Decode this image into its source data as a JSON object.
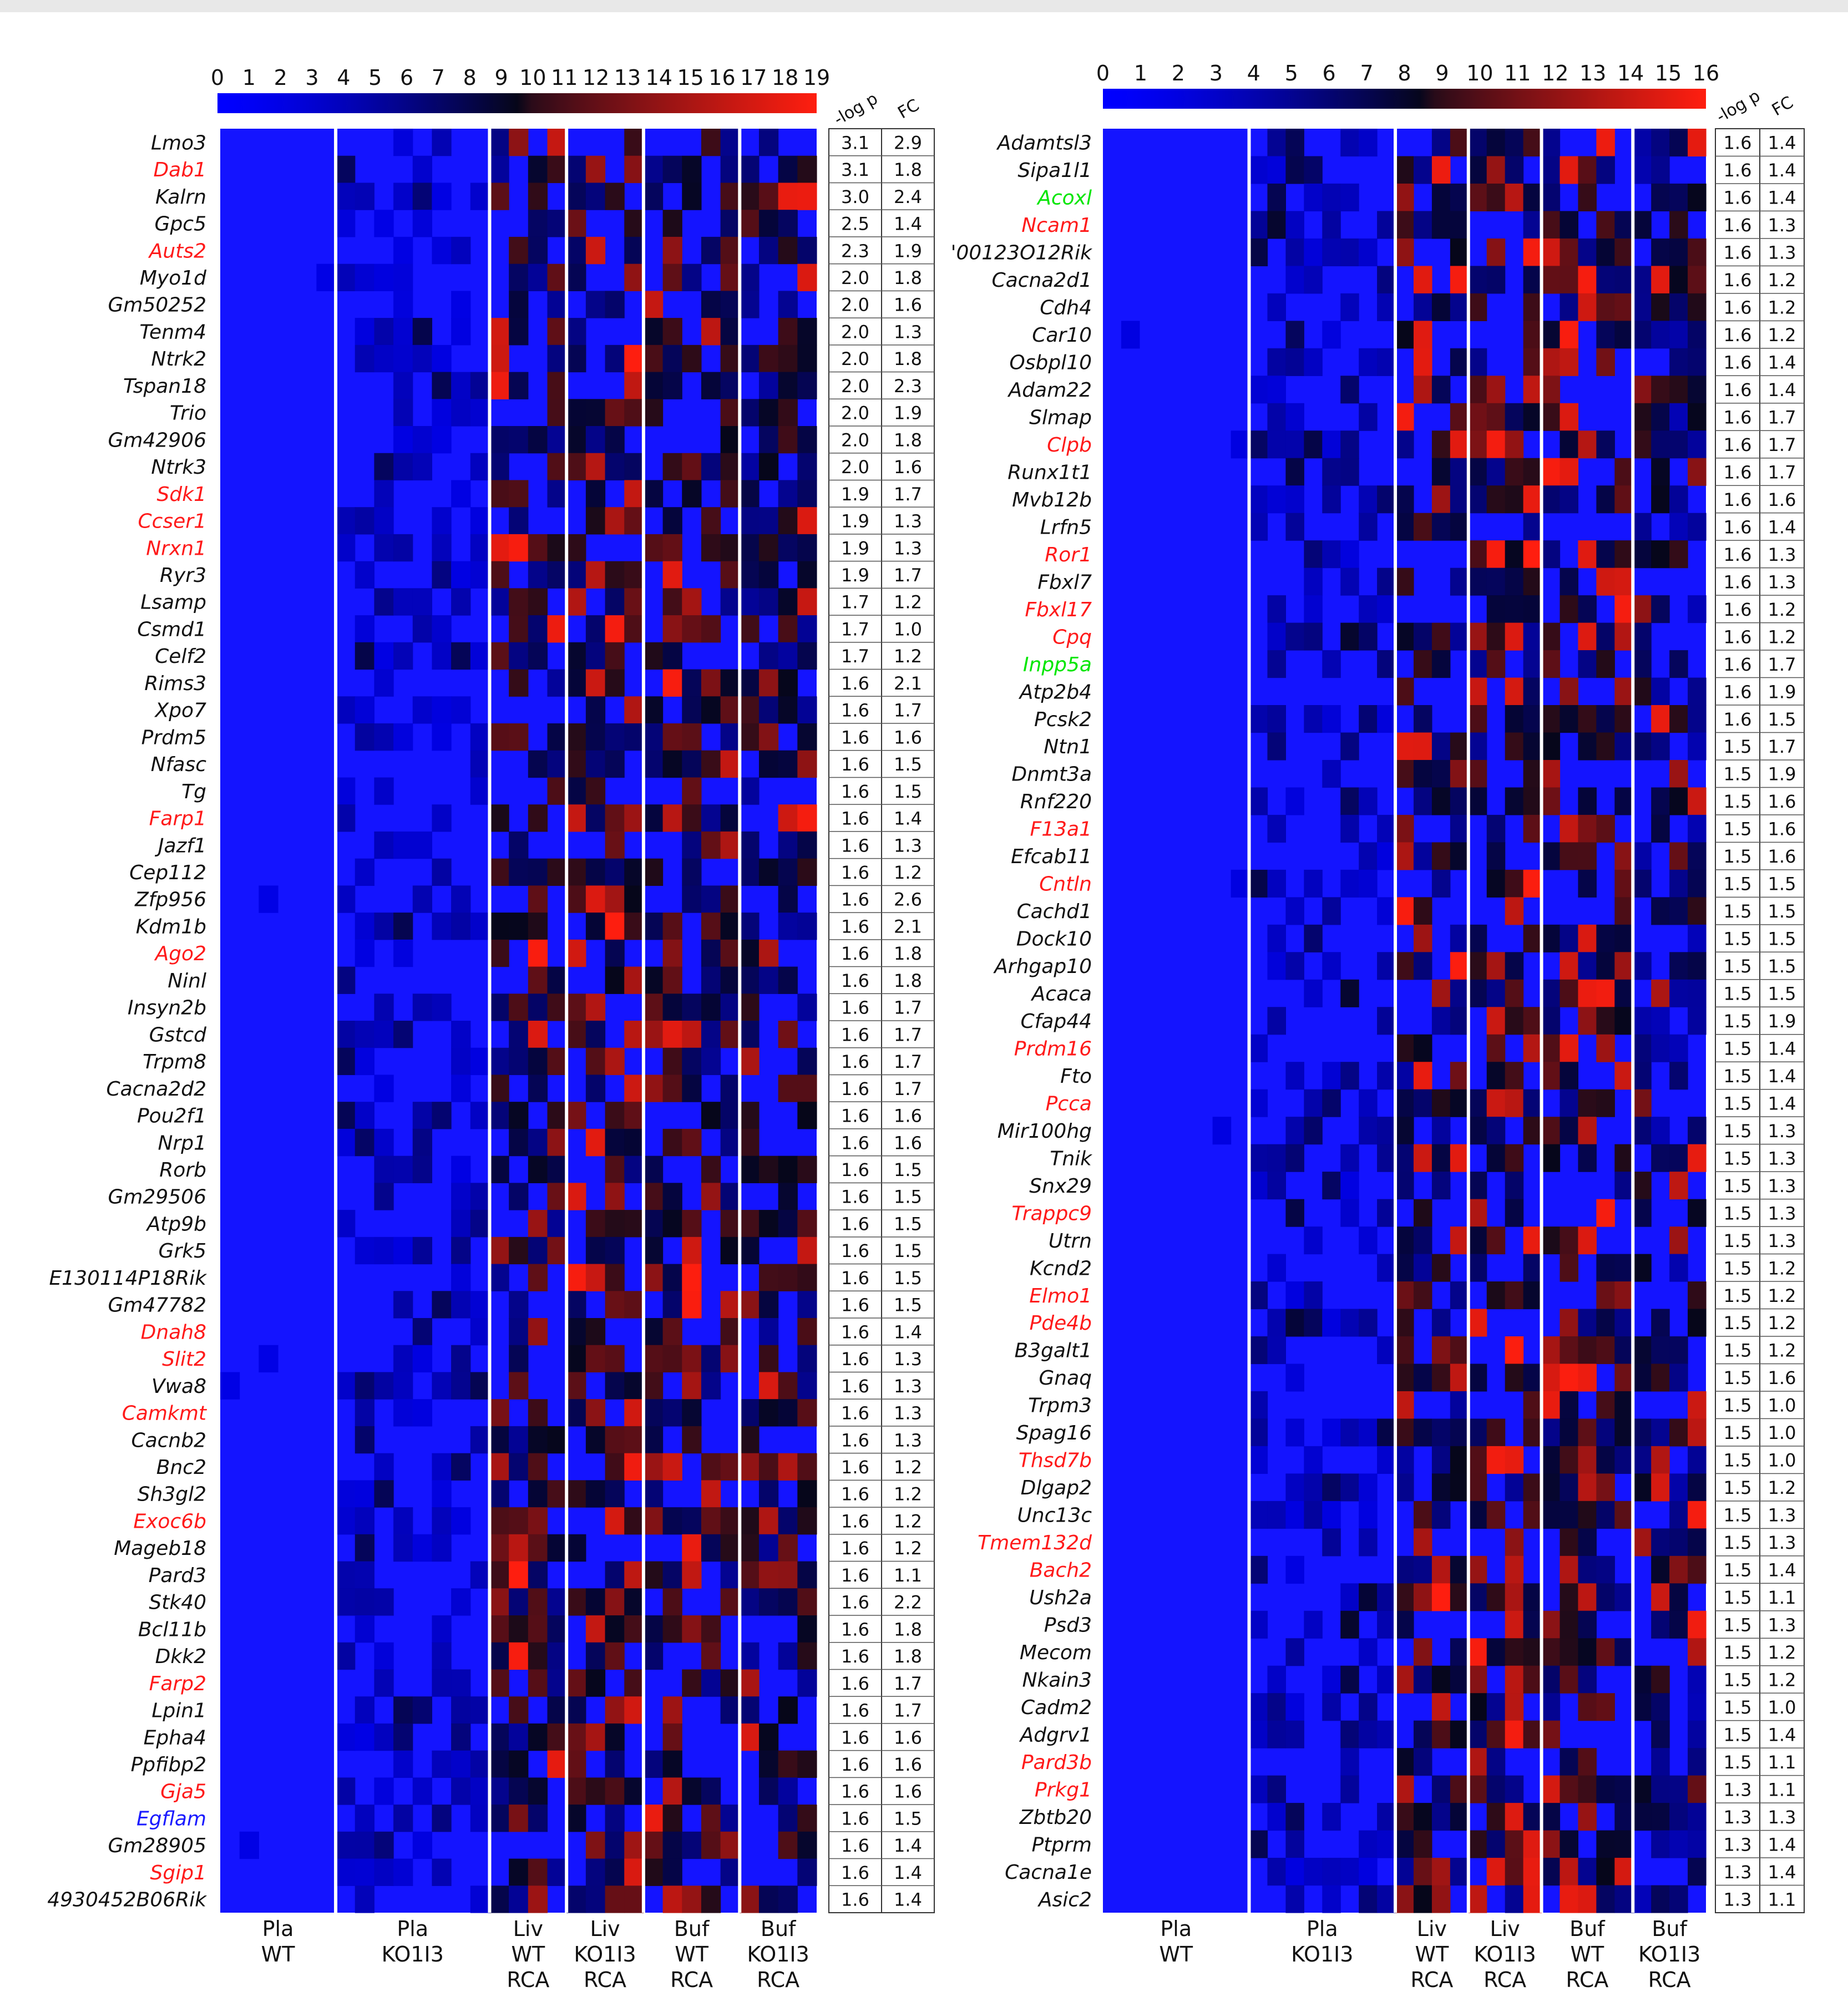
{
  "chart_data": [
    {
      "type": "heatmap",
      "panel": "left",
      "colorbar": {
        "ticks": [
          "0",
          "1",
          "2",
          "3",
          "4",
          "5",
          "6",
          "7",
          "8",
          "9",
          "10",
          "11",
          "12",
          "13",
          "14",
          "15",
          "16",
          "17",
          "18",
          "19"
        ],
        "range": [
          0,
          19
        ]
      },
      "table_headers": [
        "-log p",
        "FC"
      ],
      "group_columns": [
        6,
        8,
        4,
        4,
        5,
        4
      ],
      "group_labels": [
        [
          "Pla",
          "WT"
        ],
        [
          "Pla",
          "KO1I3"
        ],
        [
          "Liv",
          "WT",
          "RCA"
        ],
        [
          "Liv",
          "KO1I3",
          "RCA"
        ],
        [
          "Buf",
          "WT",
          "RCA"
        ],
        [
          "Buf",
          "KO1I3",
          "RCA"
        ]
      ],
      "genes": [
        {
          "name": "Lmo3",
          "color": "black",
          "logp": "3.1",
          "fc": "2.9"
        },
        {
          "name": "Dab1",
          "color": "red",
          "logp": "3.1",
          "fc": "1.8"
        },
        {
          "name": "Kalrn",
          "color": "black",
          "logp": "3.0",
          "fc": "2.4"
        },
        {
          "name": "Gpc5",
          "color": "black",
          "logp": "2.5",
          "fc": "1.4"
        },
        {
          "name": "Auts2",
          "color": "red",
          "logp": "2.3",
          "fc": "1.9"
        },
        {
          "name": "Myo1d",
          "color": "black",
          "logp": "2.0",
          "fc": "1.8"
        },
        {
          "name": "Gm50252",
          "color": "black",
          "logp": "2.0",
          "fc": "1.6"
        },
        {
          "name": "Tenm4",
          "color": "black",
          "logp": "2.0",
          "fc": "1.3"
        },
        {
          "name": "Ntrk2",
          "color": "black",
          "logp": "2.0",
          "fc": "1.8"
        },
        {
          "name": "Tspan18",
          "color": "black",
          "logp": "2.0",
          "fc": "2.3"
        },
        {
          "name": "Trio",
          "color": "black",
          "logp": "2.0",
          "fc": "1.9"
        },
        {
          "name": "Gm42906",
          "color": "black",
          "logp": "2.0",
          "fc": "1.8"
        },
        {
          "name": "Ntrk3",
          "color": "black",
          "logp": "2.0",
          "fc": "1.6"
        },
        {
          "name": "Sdk1",
          "color": "red",
          "logp": "1.9",
          "fc": "1.7"
        },
        {
          "name": "Ccser1",
          "color": "red",
          "logp": "1.9",
          "fc": "1.3"
        },
        {
          "name": "Nrxn1",
          "color": "red",
          "logp": "1.9",
          "fc": "1.3"
        },
        {
          "name": "Ryr3",
          "color": "black",
          "logp": "1.9",
          "fc": "1.7"
        },
        {
          "name": "Lsamp",
          "color": "black",
          "logp": "1.7",
          "fc": "1.2"
        },
        {
          "name": "Csmd1",
          "color": "black",
          "logp": "1.7",
          "fc": "1.0"
        },
        {
          "name": "Celf2",
          "color": "black",
          "logp": "1.7",
          "fc": "1.2"
        },
        {
          "name": "Rims3",
          "color": "black",
          "logp": "1.6",
          "fc": "2.1"
        },
        {
          "name": "Xpo7",
          "color": "black",
          "logp": "1.6",
          "fc": "1.7"
        },
        {
          "name": "Prdm5",
          "color": "black",
          "logp": "1.6",
          "fc": "1.6"
        },
        {
          "name": "Nfasc",
          "color": "black",
          "logp": "1.6",
          "fc": "1.5"
        },
        {
          "name": "Tg",
          "color": "black",
          "logp": "1.6",
          "fc": "1.5"
        },
        {
          "name": "Farp1",
          "color": "red",
          "logp": "1.6",
          "fc": "1.4"
        },
        {
          "name": "Jazf1",
          "color": "black",
          "logp": "1.6",
          "fc": "1.3"
        },
        {
          "name": "Cep112",
          "color": "black",
          "logp": "1.6",
          "fc": "1.2"
        },
        {
          "name": "Zfp956",
          "color": "black",
          "logp": "1.6",
          "fc": "2.6"
        },
        {
          "name": "Kdm1b",
          "color": "black",
          "logp": "1.6",
          "fc": "2.1"
        },
        {
          "name": "Ago2",
          "color": "red",
          "logp": "1.6",
          "fc": "1.8"
        },
        {
          "name": "Ninl",
          "color": "black",
          "logp": "1.6",
          "fc": "1.8"
        },
        {
          "name": "Insyn2b",
          "color": "black",
          "logp": "1.6",
          "fc": "1.7"
        },
        {
          "name": "Gstcd",
          "color": "black",
          "logp": "1.6",
          "fc": "1.7"
        },
        {
          "name": "Trpm8",
          "color": "black",
          "logp": "1.6",
          "fc": "1.7"
        },
        {
          "name": "Cacna2d2",
          "color": "black",
          "logp": "1.6",
          "fc": "1.7"
        },
        {
          "name": "Pou2f1",
          "color": "black",
          "logp": "1.6",
          "fc": "1.6"
        },
        {
          "name": "Nrp1",
          "color": "black",
          "logp": "1.6",
          "fc": "1.6"
        },
        {
          "name": "Rorb",
          "color": "black",
          "logp": "1.6",
          "fc": "1.5"
        },
        {
          "name": "Gm29506",
          "color": "black",
          "logp": "1.6",
          "fc": "1.5"
        },
        {
          "name": "Atp9b",
          "color": "black",
          "logp": "1.6",
          "fc": "1.5"
        },
        {
          "name": "Grk5",
          "color": "black",
          "logp": "1.6",
          "fc": "1.5"
        },
        {
          "name": "E130114P18Rik",
          "color": "black",
          "logp": "1.6",
          "fc": "1.5"
        },
        {
          "name": "Gm47782",
          "color": "black",
          "logp": "1.6",
          "fc": "1.5"
        },
        {
          "name": "Dnah8",
          "color": "red",
          "logp": "1.6",
          "fc": "1.4"
        },
        {
          "name": "Slit2",
          "color": "red",
          "logp": "1.6",
          "fc": "1.3"
        },
        {
          "name": "Vwa8",
          "color": "black",
          "logp": "1.6",
          "fc": "1.3"
        },
        {
          "name": "Camkmt",
          "color": "red",
          "logp": "1.6",
          "fc": "1.3"
        },
        {
          "name": "Cacnb2",
          "color": "black",
          "logp": "1.6",
          "fc": "1.3"
        },
        {
          "name": "Bnc2",
          "color": "black",
          "logp": "1.6",
          "fc": "1.2"
        },
        {
          "name": "Sh3gl2",
          "color": "black",
          "logp": "1.6",
          "fc": "1.2"
        },
        {
          "name": "Exoc6b",
          "color": "red",
          "logp": "1.6",
          "fc": "1.2"
        },
        {
          "name": "Mageb18",
          "color": "black",
          "logp": "1.6",
          "fc": "1.2"
        },
        {
          "name": "Pard3",
          "color": "black",
          "logp": "1.6",
          "fc": "1.1"
        },
        {
          "name": "Stk40",
          "color": "black",
          "logp": "1.6",
          "fc": "2.2"
        },
        {
          "name": "Bcl11b",
          "color": "black",
          "logp": "1.6",
          "fc": "1.8"
        },
        {
          "name": "Dkk2",
          "color": "black",
          "logp": "1.6",
          "fc": "1.8"
        },
        {
          "name": "Farp2",
          "color": "red",
          "logp": "1.6",
          "fc": "1.7"
        },
        {
          "name": "Lpin1",
          "color": "black",
          "logp": "1.6",
          "fc": "1.7"
        },
        {
          "name": "Epha4",
          "color": "black",
          "logp": "1.6",
          "fc": "1.6"
        },
        {
          "name": "Ppfibp2",
          "color": "black",
          "logp": "1.6",
          "fc": "1.6"
        },
        {
          "name": "Gja5",
          "color": "red",
          "logp": "1.6",
          "fc": "1.6"
        },
        {
          "name": "Egflam",
          "color": "blue",
          "logp": "1.6",
          "fc": "1.5"
        },
        {
          "name": "Gm28905",
          "color": "black",
          "logp": "1.6",
          "fc": "1.4"
        },
        {
          "name": "Sgip1",
          "color": "red",
          "logp": "1.6",
          "fc": "1.4"
        },
        {
          "name": "4930452B06Rik",
          "color": "black",
          "logp": "1.6",
          "fc": "1.4"
        }
      ]
    },
    {
      "type": "heatmap",
      "panel": "right",
      "colorbar": {
        "ticks": [
          "0",
          "1",
          "2",
          "3",
          "4",
          "5",
          "6",
          "7",
          "8",
          "9",
          "10",
          "11",
          "12",
          "13",
          "14",
          "15",
          "16"
        ],
        "range": [
          0,
          16
        ]
      },
      "table_headers": [
        "-log p",
        "FC"
      ],
      "group_columns": [
        8,
        8,
        4,
        4,
        5,
        4
      ],
      "group_labels": [
        [
          "Pla",
          "WT"
        ],
        [
          "Pla",
          "KO1I3"
        ],
        [
          "Liv",
          "WT",
          "RCA"
        ],
        [
          "Liv",
          "KO1I3",
          "RCA"
        ],
        [
          "Buf",
          "WT",
          "RCA"
        ],
        [
          "Buf",
          "KO1I3",
          "RCA"
        ]
      ],
      "genes": [
        {
          "name": "Adamtsl3",
          "color": "black",
          "logp": "1.6",
          "fc": "1.4"
        },
        {
          "name": "Sipa1l1",
          "color": "black",
          "logp": "1.6",
          "fc": "1.4"
        },
        {
          "name": "Acoxl",
          "color": "green",
          "logp": "1.6",
          "fc": "1.4"
        },
        {
          "name": "Ncam1",
          "color": "red",
          "logp": "1.6",
          "fc": "1.3"
        },
        {
          "name": "'00123O12Rik",
          "color": "black",
          "logp": "1.6",
          "fc": "1.3"
        },
        {
          "name": "Cacna2d1",
          "color": "black",
          "logp": "1.6",
          "fc": "1.2"
        },
        {
          "name": "Cdh4",
          "color": "black",
          "logp": "1.6",
          "fc": "1.2"
        },
        {
          "name": "Car10",
          "color": "black",
          "logp": "1.6",
          "fc": "1.2"
        },
        {
          "name": "Osbpl10",
          "color": "black",
          "logp": "1.6",
          "fc": "1.4"
        },
        {
          "name": "Adam22",
          "color": "black",
          "logp": "1.6",
          "fc": "1.4"
        },
        {
          "name": "Slmap",
          "color": "black",
          "logp": "1.6",
          "fc": "1.7"
        },
        {
          "name": "Clpb",
          "color": "red",
          "logp": "1.6",
          "fc": "1.7"
        },
        {
          "name": "Runx1t1",
          "color": "black",
          "logp": "1.6",
          "fc": "1.7"
        },
        {
          "name": "Mvb12b",
          "color": "black",
          "logp": "1.6",
          "fc": "1.6"
        },
        {
          "name": "Lrfn5",
          "color": "black",
          "logp": "1.6",
          "fc": "1.4"
        },
        {
          "name": "Ror1",
          "color": "red",
          "logp": "1.6",
          "fc": "1.3"
        },
        {
          "name": "Fbxl7",
          "color": "black",
          "logp": "1.6",
          "fc": "1.3"
        },
        {
          "name": "Fbxl17",
          "color": "red",
          "logp": "1.6",
          "fc": "1.2"
        },
        {
          "name": "Cpq",
          "color": "red",
          "logp": "1.6",
          "fc": "1.2"
        },
        {
          "name": "Inpp5a",
          "color": "green",
          "logp": "1.6",
          "fc": "1.7"
        },
        {
          "name": "Atp2b4",
          "color": "black",
          "logp": "1.6",
          "fc": "1.9"
        },
        {
          "name": "Pcsk2",
          "color": "black",
          "logp": "1.6",
          "fc": "1.5"
        },
        {
          "name": "Ntn1",
          "color": "black",
          "logp": "1.5",
          "fc": "1.7"
        },
        {
          "name": "Dnmt3a",
          "color": "black",
          "logp": "1.5",
          "fc": "1.9"
        },
        {
          "name": "Rnf220",
          "color": "black",
          "logp": "1.5",
          "fc": "1.6"
        },
        {
          "name": "F13a1",
          "color": "red",
          "logp": "1.5",
          "fc": "1.6"
        },
        {
          "name": "Efcab11",
          "color": "black",
          "logp": "1.5",
          "fc": "1.6"
        },
        {
          "name": "Cntln",
          "color": "red",
          "logp": "1.5",
          "fc": "1.5"
        },
        {
          "name": "Cachd1",
          "color": "black",
          "logp": "1.5",
          "fc": "1.5"
        },
        {
          "name": "Dock10",
          "color": "black",
          "logp": "1.5",
          "fc": "1.5"
        },
        {
          "name": "Arhgap10",
          "color": "black",
          "logp": "1.5",
          "fc": "1.5"
        },
        {
          "name": "Acaca",
          "color": "black",
          "logp": "1.5",
          "fc": "1.5"
        },
        {
          "name": "Cfap44",
          "color": "black",
          "logp": "1.5",
          "fc": "1.9"
        },
        {
          "name": "Prdm16",
          "color": "red",
          "logp": "1.5",
          "fc": "1.4"
        },
        {
          "name": "Fto",
          "color": "black",
          "logp": "1.5",
          "fc": "1.4"
        },
        {
          "name": "Pcca",
          "color": "red",
          "logp": "1.5",
          "fc": "1.4"
        },
        {
          "name": "Mir100hg",
          "color": "black",
          "logp": "1.5",
          "fc": "1.3"
        },
        {
          "name": "Tnik",
          "color": "black",
          "logp": "1.5",
          "fc": "1.3"
        },
        {
          "name": "Snx29",
          "color": "black",
          "logp": "1.5",
          "fc": "1.3"
        },
        {
          "name": "Trappc9",
          "color": "red",
          "logp": "1.5",
          "fc": "1.3"
        },
        {
          "name": "Utrn",
          "color": "black",
          "logp": "1.5",
          "fc": "1.3"
        },
        {
          "name": "Kcnd2",
          "color": "black",
          "logp": "1.5",
          "fc": "1.2"
        },
        {
          "name": "Elmo1",
          "color": "red",
          "logp": "1.5",
          "fc": "1.2"
        },
        {
          "name": "Pde4b",
          "color": "red",
          "logp": "1.5",
          "fc": "1.2"
        },
        {
          "name": "B3galt1",
          "color": "black",
          "logp": "1.5",
          "fc": "1.2"
        },
        {
          "name": "Gnaq",
          "color": "black",
          "logp": "1.5",
          "fc": "1.6"
        },
        {
          "name": "Trpm3",
          "color": "black",
          "logp": "1.5",
          "fc": "1.0"
        },
        {
          "name": "Spag16",
          "color": "black",
          "logp": "1.5",
          "fc": "1.0"
        },
        {
          "name": "Thsd7b",
          "color": "red",
          "logp": "1.5",
          "fc": "1.0"
        },
        {
          "name": "Dlgap2",
          "color": "black",
          "logp": "1.5",
          "fc": "1.2"
        },
        {
          "name": "Unc13c",
          "color": "black",
          "logp": "1.5",
          "fc": "1.3"
        },
        {
          "name": "Tmem132d",
          "color": "red",
          "logp": "1.5",
          "fc": "1.3"
        },
        {
          "name": "Bach2",
          "color": "red",
          "logp": "1.5",
          "fc": "1.4"
        },
        {
          "name": "Ush2a",
          "color": "black",
          "logp": "1.5",
          "fc": "1.1"
        },
        {
          "name": "Psd3",
          "color": "black",
          "logp": "1.5",
          "fc": "1.3"
        },
        {
          "name": "Mecom",
          "color": "black",
          "logp": "1.5",
          "fc": "1.2"
        },
        {
          "name": "Nkain3",
          "color": "black",
          "logp": "1.5",
          "fc": "1.2"
        },
        {
          "name": "Cadm2",
          "color": "black",
          "logp": "1.5",
          "fc": "1.0"
        },
        {
          "name": "Adgrv1",
          "color": "black",
          "logp": "1.5",
          "fc": "1.4"
        },
        {
          "name": "Pard3b",
          "color": "red",
          "logp": "1.5",
          "fc": "1.1"
        },
        {
          "name": "Prkg1",
          "color": "red",
          "logp": "1.3",
          "fc": "1.1"
        },
        {
          "name": "Zbtb20",
          "color": "black",
          "logp": "1.3",
          "fc": "1.3"
        },
        {
          "name": "Ptprm",
          "color": "black",
          "logp": "1.3",
          "fc": "1.4"
        },
        {
          "name": "Cacna1e",
          "color": "black",
          "logp": "1.3",
          "fc": "1.4"
        },
        {
          "name": "Asic2",
          "color": "black",
          "logp": "1.3",
          "fc": "1.1"
        }
      ]
    }
  ]
}
